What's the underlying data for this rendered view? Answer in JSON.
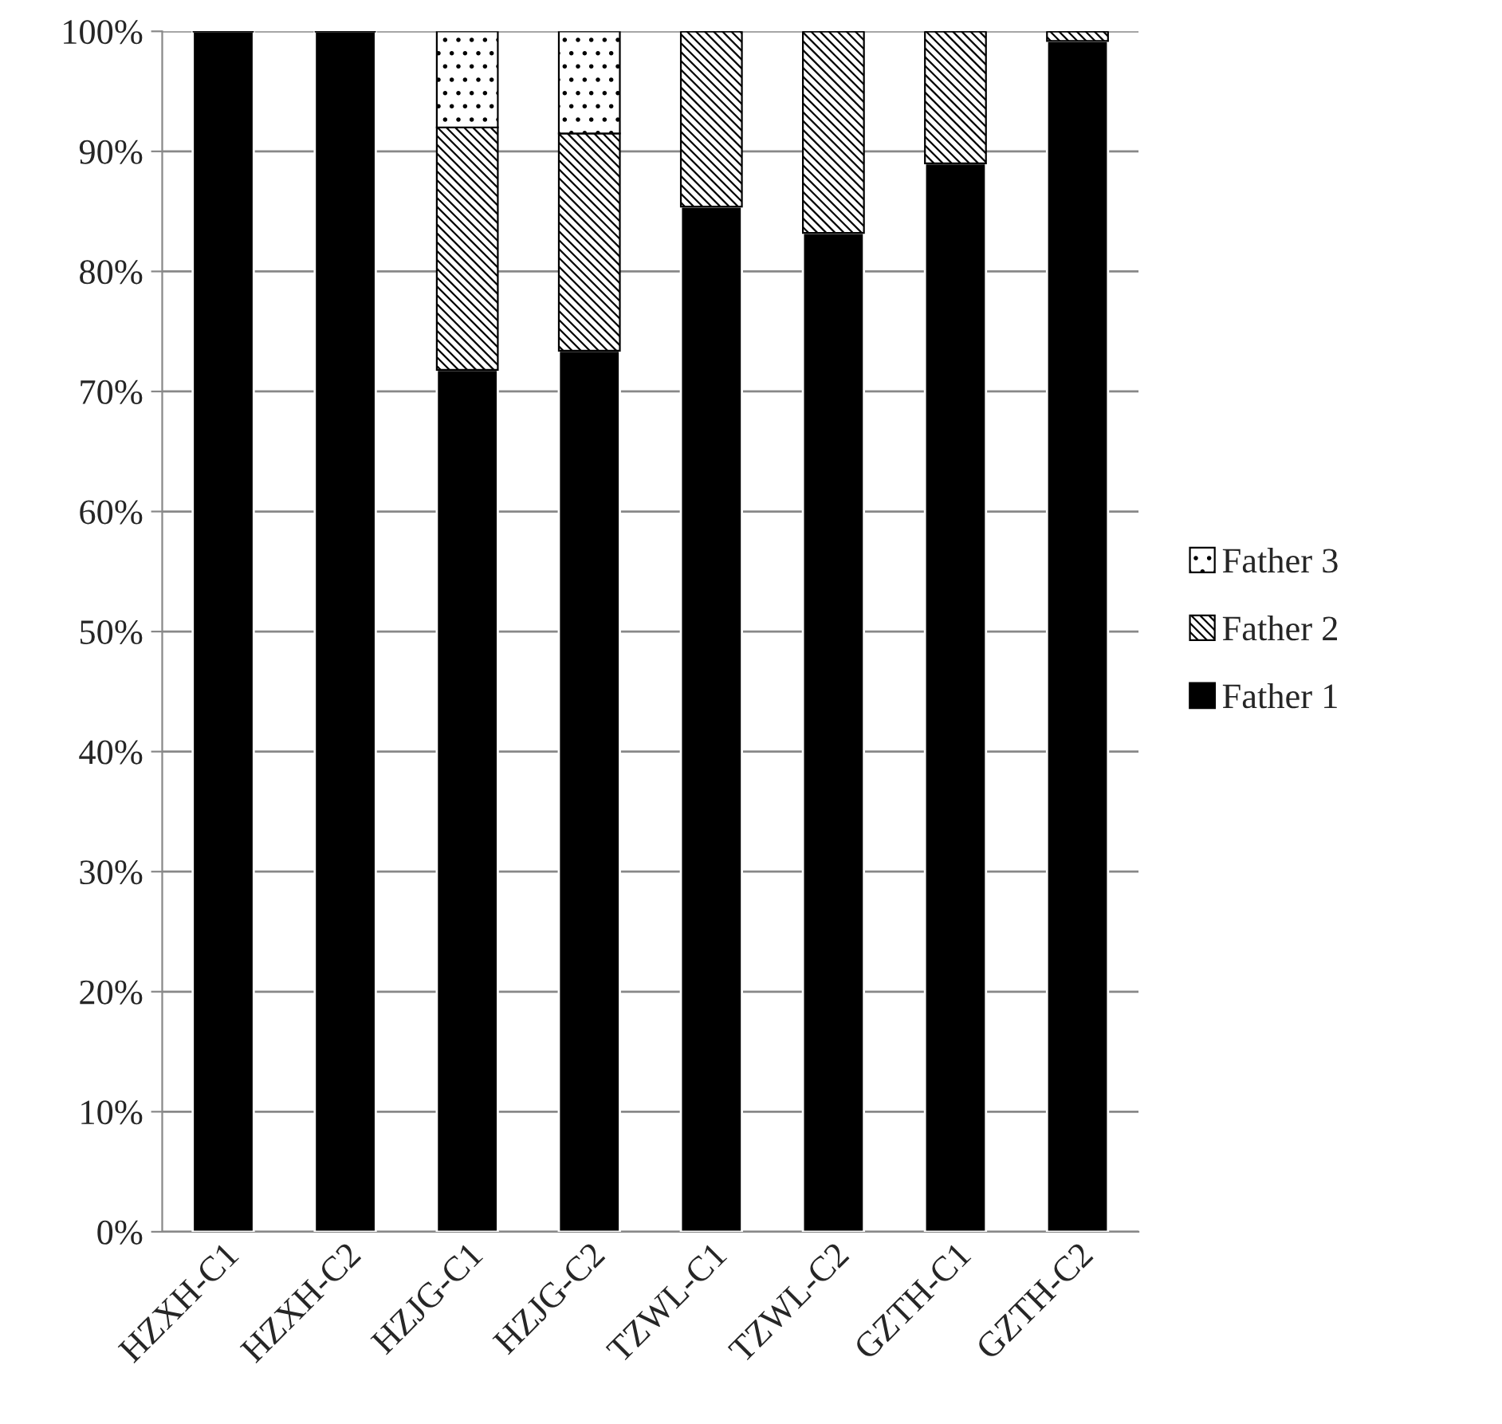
{
  "chart_data": {
    "type": "bar",
    "stacked": true,
    "categories": [
      "HZXH-C1",
      "HZXH-C2",
      "HZJG-C1",
      "HZJG-C2",
      "TZWL-C1",
      "TZWL-C2",
      "GZTH-C1",
      "GZTH-C2"
    ],
    "series": [
      {
        "name": "Father 1",
        "color": "#000000",
        "values": [
          100,
          100,
          71.8,
          73.4,
          85.4,
          83.2,
          89.0,
          99.2
        ]
      },
      {
        "name": "Father 2",
        "color": "#000000",
        "values": [
          0,
          0,
          20.2,
          18.1,
          14.6,
          16.8,
          11.0,
          0.8
        ]
      },
      {
        "name": "Father 3",
        "color": "#000000",
        "values": [
          0,
          0,
          8.0,
          8.5,
          0,
          0,
          0,
          0
        ]
      }
    ],
    "ylim": [
      0,
      100
    ],
    "yticks": [
      {
        "value": 0,
        "label": "0%"
      },
      {
        "value": 10,
        "label": "10%"
      },
      {
        "value": 20,
        "label": "20%"
      },
      {
        "value": 30,
        "label": "30%"
      },
      {
        "value": 40,
        "label": "40%"
      },
      {
        "value": 50,
        "label": "50%"
      },
      {
        "value": 60,
        "label": "60%"
      },
      {
        "value": 70,
        "label": "70%"
      },
      {
        "value": 80,
        "label": "80%"
      },
      {
        "value": 90,
        "label": "90%"
      },
      {
        "value": 100,
        "label": "100%"
      }
    ],
    "grid": "y",
    "legend": "right"
  }
}
